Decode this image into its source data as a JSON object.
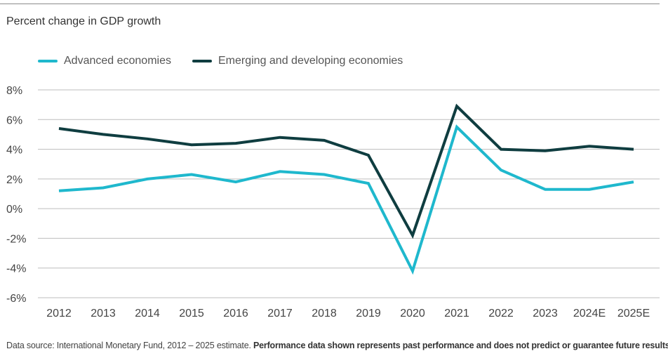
{
  "chart_data": {
    "type": "line",
    "subtitle": "Percent change in GDP growth",
    "x": [
      "2012",
      "2013",
      "2014",
      "2015",
      "2016",
      "2017",
      "2018",
      "2019",
      "2020",
      "2021",
      "2022",
      "2023",
      "2024E",
      "2025E"
    ],
    "y_ticks": [
      "8%",
      "6%",
      "4%",
      "2%",
      "0%",
      "-2%",
      "-4%",
      "-6%"
    ],
    "ylim": [
      -6,
      8
    ],
    "grid": true,
    "legend_position": "top-left",
    "series": [
      {
        "name": "Advanced economies",
        "color": "#1fb8cd",
        "values": [
          1.2,
          1.4,
          2.0,
          2.3,
          1.8,
          2.5,
          2.3,
          1.7,
          -4.2,
          5.5,
          2.6,
          1.3,
          1.3,
          1.8
        ]
      },
      {
        "name": "Emerging and developing economies",
        "color": "#0f3d40",
        "values": [
          5.4,
          5.0,
          4.7,
          4.3,
          4.4,
          4.8,
          4.6,
          3.6,
          -1.8,
          6.9,
          4.0,
          3.9,
          4.2,
          4.0
        ]
      }
    ]
  },
  "footnote": {
    "source_text": "Data source: International Monetary Fund, 2012 – 2025 estimate.",
    "disclaimer_text": "Performance data shown represents past performance and does not predict or guarantee future results."
  }
}
